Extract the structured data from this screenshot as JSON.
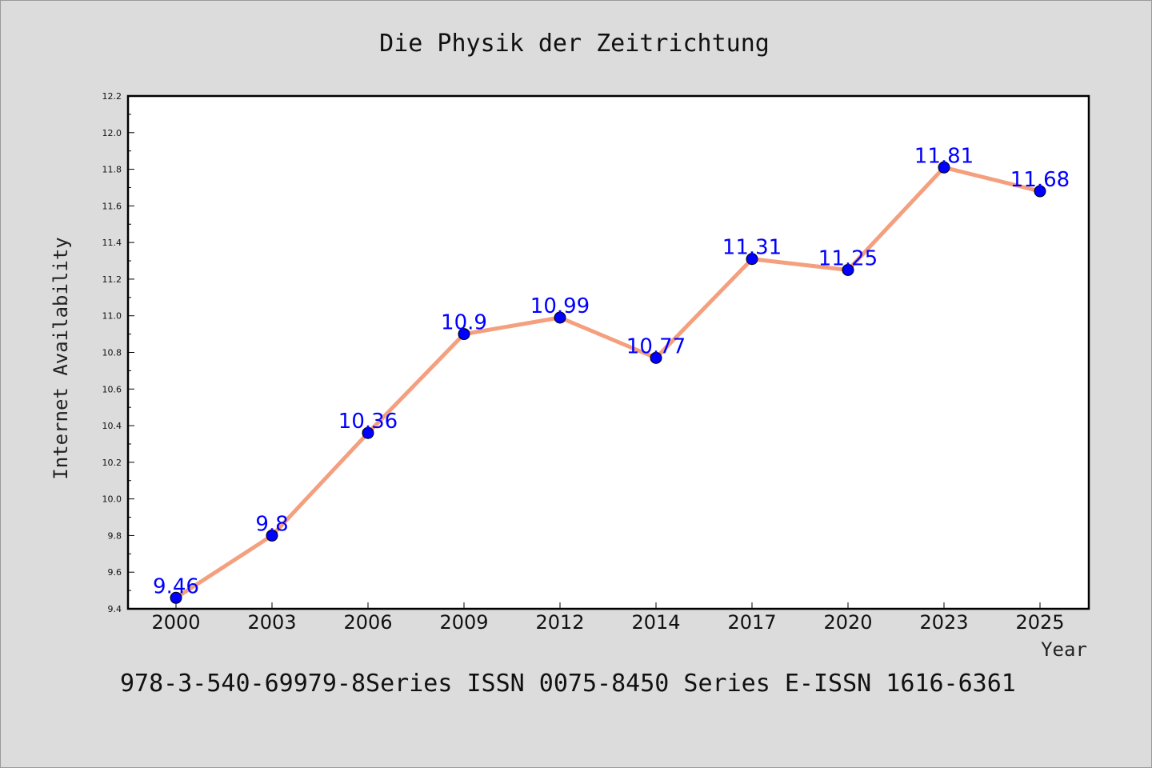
{
  "chart_data": {
    "type": "line",
    "title": "Die Physik der Zeitrichtung",
    "xlabel": "Year",
    "ylabel": "Internet Availability",
    "categories": [
      "2000",
      "2003",
      "2006",
      "2009",
      "2012",
      "2014",
      "2017",
      "2020",
      "2023",
      "2025"
    ],
    "series": [
      {
        "values": [
          9.46,
          9.8,
          10.36,
          10.9,
          10.99,
          10.77,
          11.31,
          11.25,
          11.81,
          11.68
        ]
      }
    ],
    "data_labels": [
      "9.46",
      "9.8",
      "10.36",
      "10.9",
      "10.99",
      "10.77",
      "11.31",
      "11.25",
      "11.81",
      "11.68"
    ],
    "ylim": [
      9.4,
      12.2
    ],
    "yticks": [
      "9.4",
      "9.6",
      "9.8",
      "10.0",
      "10.2",
      "10.4",
      "10.6",
      "10.8",
      "11.0",
      "11.2",
      "11.4",
      "11.6",
      "11.8",
      "12.0",
      "12.2"
    ],
    "grid": false,
    "line_color": "#f4a07f",
    "marker_color": "#0000ff",
    "label_color": "#0000ff"
  },
  "footer": {
    "text": "978-3-540-69979-8Series ISSN 0075-8450 Series E-ISSN 1616-6361"
  }
}
